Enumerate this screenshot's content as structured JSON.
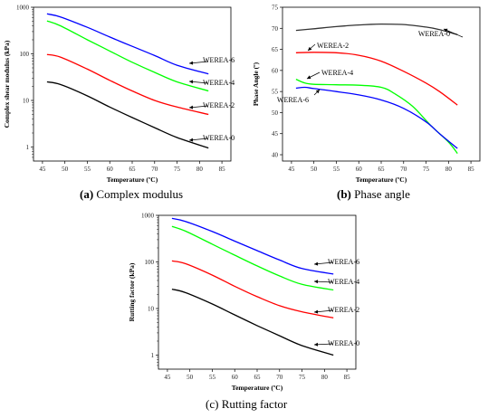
{
  "chart_data": [
    {
      "id": "a",
      "type": "line",
      "caption": {
        "label": "(a)",
        "text": "Complex modulus"
      },
      "xlabel": "Temperature (ºC)",
      "ylabel": "Complex shear modulus (kPa)",
      "xlim": [
        43,
        87
      ],
      "xticks": [
        45,
        50,
        55,
        60,
        65,
        70,
        75,
        80,
        85
      ],
      "ylim": [
        0.5,
        1000
      ],
      "yscale": "log",
      "yticks": [
        1,
        10,
        100,
        1000
      ],
      "grid": false,
      "series": [
        {
          "name": "WEREA-6",
          "color": "#0000ff",
          "x": [
            46,
            49,
            55,
            60,
            65,
            70,
            75,
            82
          ],
          "y": [
            720,
            620,
            370,
            230,
            145,
            92,
            57,
            37
          ]
        },
        {
          "name": "WEREA-4",
          "color": "#00ff00",
          "x": [
            46,
            49,
            55,
            60,
            65,
            70,
            75,
            82
          ],
          "y": [
            510,
            400,
            200,
            115,
            66,
            40,
            25,
            16
          ]
        },
        {
          "name": "WEREA-2",
          "color": "#ff0000",
          "x": [
            46,
            49,
            55,
            60,
            65,
            70,
            75,
            82
          ],
          "y": [
            97,
            85,
            47,
            27,
            16,
            10,
            7.2,
            5
          ]
        },
        {
          "name": "WEREA-0",
          "color": "#000000",
          "x": [
            46,
            49,
            55,
            60,
            65,
            70,
            75,
            82
          ],
          "y": [
            25,
            22,
            12.5,
            7.2,
            4.3,
            2.6,
            1.6,
            0.95
          ]
        }
      ]
    },
    {
      "id": "b",
      "type": "line",
      "caption": {
        "label": "(b)",
        "text": "Phase angle"
      },
      "xlabel": "Temperature (ºC)",
      "ylabel": "Phase Angle (º)",
      "xlim": [
        43,
        87
      ],
      "xticks": [
        45,
        50,
        55,
        60,
        65,
        70,
        75,
        80,
        85
      ],
      "ylim": [
        38.5,
        75
      ],
      "yscale": "linear",
      "yticks": [
        40,
        45,
        50,
        55,
        60,
        65,
        70,
        75
      ],
      "grid": false,
      "series": [
        {
          "name": "WEREA-0",
          "color": "#333333",
          "x": [
            46,
            50,
            55,
            60,
            65,
            70,
            75,
            78,
            82
          ],
          "y": [
            69.5,
            69.9,
            70.4,
            70.8,
            71.0,
            70.9,
            70.3,
            69.7,
            68.5
          ]
        },
        {
          "name": "WEREA-2",
          "color": "#ff0000",
          "x": [
            46,
            50,
            55,
            60,
            65,
            70,
            75,
            78,
            82
          ],
          "y": [
            64.2,
            64.3,
            64.2,
            63.6,
            62.2,
            59.8,
            57.0,
            55.0,
            51.8
          ]
        },
        {
          "name": "WEREA-4",
          "color": "#00ff00",
          "x": [
            46,
            48,
            50,
            55,
            60,
            65,
            68,
            72,
            76,
            80,
            82
          ],
          "y": [
            57.9,
            57.0,
            56.7,
            56.6,
            56.5,
            56.0,
            54.5,
            51.5,
            47.0,
            43.0,
            40.3
          ]
        },
        {
          "name": "WEREA-6",
          "color": "#0000ff",
          "x": [
            46,
            48,
            50,
            55,
            60,
            65,
            70,
            75,
            78,
            82
          ],
          "y": [
            55.8,
            56.0,
            55.7,
            55.0,
            54.2,
            53.0,
            51.0,
            47.8,
            45.0,
            41.5
          ]
        }
      ]
    },
    {
      "id": "c",
      "type": "line",
      "caption": {
        "label": "(c)",
        "text": "Rutting factor"
      },
      "xlabel": "Temperature (ºC)",
      "ylabel": "Rutting factor (kPa)",
      "xlim": [
        43,
        87
      ],
      "xticks": [
        45,
        50,
        55,
        60,
        65,
        70,
        75,
        80,
        85
      ],
      "ylim": [
        0.5,
        1000
      ],
      "yscale": "log",
      "yticks": [
        1,
        10,
        100,
        1000
      ],
      "grid": false,
      "series": [
        {
          "name": "WEREA-6",
          "color": "#0000ff",
          "x": [
            46,
            49,
            55,
            60,
            65,
            70,
            75,
            82
          ],
          "y": [
            860,
            740,
            450,
            280,
            175,
            110,
            72,
            55
          ]
        },
        {
          "name": "WEREA-4",
          "color": "#00ff00",
          "x": [
            46,
            49,
            55,
            60,
            65,
            70,
            75,
            82
          ],
          "y": [
            580,
            460,
            240,
            140,
            82,
            50,
            33,
            25
          ]
        },
        {
          "name": "WEREA-2",
          "color": "#ff0000",
          "x": [
            46,
            49,
            55,
            60,
            65,
            70,
            75,
            82
          ],
          "y": [
            105,
            92,
            52,
            30,
            18,
            11.5,
            8.5,
            6.3
          ]
        },
        {
          "name": "WEREA-0",
          "color": "#000000",
          "x": [
            46,
            49,
            55,
            60,
            65,
            70,
            75,
            82
          ],
          "y": [
            26,
            22,
            12.5,
            7.3,
            4.3,
            2.6,
            1.6,
            1.0
          ]
        }
      ]
    }
  ]
}
